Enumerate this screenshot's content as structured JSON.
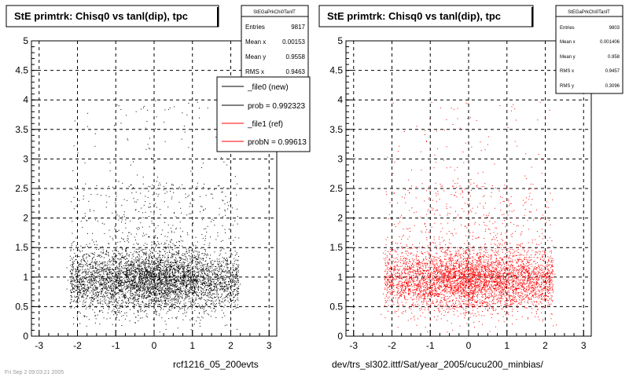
{
  "footer_stamp": "Fri Sep 2 09:03:21 2005",
  "chart_data": [
    {
      "type": "scatter",
      "title": "StE primtrk: Chisq0 vs tanl(dip), tpc",
      "xlim": [
        -3.2,
        3.2
      ],
      "ylim": [
        0,
        5
      ],
      "x_ticks": [
        "-3",
        "-2",
        "-1",
        "0",
        "1",
        "2",
        "3"
      ],
      "y_ticks": [
        "0",
        "0.5",
        "1",
        "1.5",
        "2",
        "2.5",
        "3",
        "3.5",
        "4",
        "4.5",
        "5"
      ],
      "grid": true,
      "point_color": "#000000",
      "note": "rcf1216_05_200evts",
      "stats": {
        "name": "StEGaPrkChi0TanlT",
        "rows": [
          {
            "label": "Entries",
            "value": "9817"
          },
          {
            "label": "Mean x",
            "value": "0.00153"
          },
          {
            "label": "Mean y",
            "value": "0.9558"
          },
          {
            "label": "RMS x",
            "value": "0.9463"
          }
        ]
      },
      "legend": {
        "placement": "top-right",
        "entries": [
          {
            "label": "_file0 (new)",
            "color": "#000000"
          },
          {
            "label": "prob = 0.992323",
            "color": "#000000"
          },
          {
            "label": "_file1 (ref)",
            "color": "#ff0000"
          },
          {
            "label": "probN = 0.99613",
            "color": "#ff0000"
          }
        ]
      },
      "distribution": {
        "n_points": 9817,
        "x_mean": 0.0,
        "x_rms": 0.9463,
        "x_range": [
          -2.2,
          2.2
        ],
        "y_mean": 0.9558,
        "y_rms": 0.3
      }
    },
    {
      "type": "scatter",
      "title": "StE primtrk: Chisq0 vs tanl(dip), tpc",
      "xlim": [
        -3.2,
        3.2
      ],
      "ylim": [
        0,
        5
      ],
      "x_ticks": [
        "-3",
        "-2",
        "-1",
        "0",
        "1",
        "2",
        "3"
      ],
      "y_ticks": [
        "0",
        "0.5",
        "1",
        "1.5",
        "2",
        "2.5",
        "3",
        "3.5",
        "4",
        "4.5",
        "5"
      ],
      "grid": true,
      "point_color": "#ff0000",
      "note": "dev/trs_sl302.ittf/Sat/year_2005/cucu200_minbias/",
      "stats": {
        "name": "StEGaPrkChi0TanlT",
        "rows": [
          {
            "label": "Entries",
            "value": "9803"
          },
          {
            "label": "Mean x",
            "value": "0.001406"
          },
          {
            "label": "Mean y",
            "value": "0.958"
          },
          {
            "label": "RMS x",
            "value": "0.9457"
          },
          {
            "label": "RMS y",
            "value": "0.3096"
          }
        ]
      },
      "distribution": {
        "n_points": 9803,
        "x_mean": 0.0,
        "x_rms": 0.9457,
        "x_range": [
          -2.2,
          2.2
        ],
        "y_mean": 0.958,
        "y_rms": 0.3096
      }
    }
  ]
}
